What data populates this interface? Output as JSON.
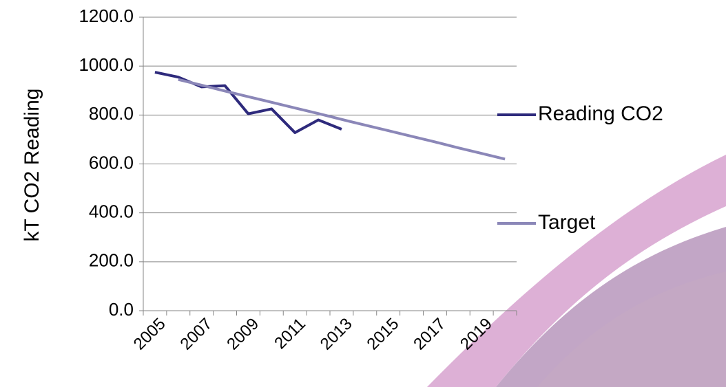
{
  "chart_data": {
    "type": "line",
    "y_label": "kT CO2 Reading",
    "categories": [
      "2005",
      null,
      "2007",
      null,
      "2009",
      null,
      "2011",
      null,
      "2013",
      null,
      "2015",
      null,
      "2017",
      null,
      "2019",
      null
    ],
    "series": [
      {
        "name": "Reading CO2",
        "color": "#2e2a7c",
        "values": [
          975,
          955,
          915,
          920,
          805,
          825,
          728,
          780,
          742,
          null,
          null,
          null,
          null,
          null,
          null,
          null
        ]
      },
      {
        "name": "Target",
        "color": "#8b87b8",
        "values": [
          null,
          945,
          922,
          898,
          875,
          852,
          829,
          806,
          782,
          759,
          736,
          713,
          690,
          666,
          643,
          620
        ]
      }
    ],
    "ylim": [
      0,
      1200
    ],
    "yticks": [
      {
        "value": 0,
        "label": "0.0"
      },
      {
        "value": 200,
        "label": "200.0"
      },
      {
        "value": 400,
        "label": "400.0"
      },
      {
        "value": 600,
        "label": "600.0"
      },
      {
        "value": 800,
        "label": "800.0"
      },
      {
        "value": 1000,
        "label": "1000.0"
      },
      {
        "value": 1200,
        "label": "1200.0"
      }
    ],
    "grid": true,
    "legend": "right"
  }
}
